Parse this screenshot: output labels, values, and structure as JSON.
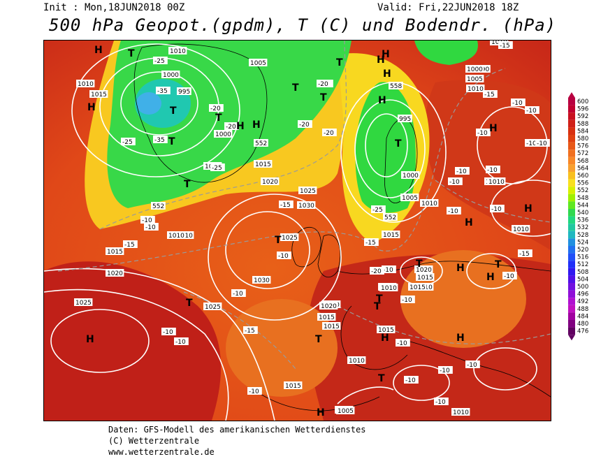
{
  "header": {
    "init": "Init : Mon,18JUN2018 00Z",
    "valid": "Valid: Fri,22JUN2018 18Z",
    "title": "500 hPa Geopot.(gpdm), T (C) und Bodendr. (hPa)"
  },
  "legend": {
    "values": [
      "600",
      "596",
      "592",
      "588",
      "584",
      "580",
      "576",
      "572",
      "568",
      "564",
      "560",
      "556",
      "552",
      "548",
      "544",
      "540",
      "536",
      "532",
      "528",
      "524",
      "520",
      "516",
      "512",
      "508",
      "504",
      "500",
      "496",
      "492",
      "488",
      "484",
      "480",
      "476"
    ],
    "colors": [
      "#b80040",
      "#c00030",
      "#c81020",
      "#d02018",
      "#d83010",
      "#e04010",
      "#e85818",
      "#f07020",
      "#f88828",
      "#f8a030",
      "#f8c020",
      "#f8e020",
      "#d8f000",
      "#a0f000",
      "#60e820",
      "#30d850",
      "#20d880",
      "#20c8a0",
      "#20b8c0",
      "#2090e0",
      "#2070f0",
      "#2050f8",
      "#2030f8",
      "#3018f0",
      "#5010e8",
      "#7010e0",
      "#9010d8",
      "#b010d0",
      "#c010c0",
      "#a000a0",
      "#800080",
      "#600060"
    ]
  },
  "pressure_labels": [
    "1010",
    "1010",
    "1005",
    "1000",
    "1015",
    "995",
    "1000",
    "1005",
    "1010",
    "1015",
    "1020",
    "1025",
    "1030",
    "1025",
    "1030",
    "1015",
    "1010",
    "1015",
    "1020",
    "1025",
    "1020",
    "1015",
    "1010",
    "1025",
    "1015",
    "1010",
    "1005",
    "1010",
    "1010",
    "990",
    "1000",
    "1005",
    "1010",
    "995",
    "1000",
    "1005",
    "1010",
    "1015",
    "1020",
    "1015",
    "1010",
    "1015",
    "1010",
    "1010",
    "1010",
    "1010",
    "1015",
    "1010",
    "1005",
    "552",
    "552",
    "558",
    "552"
  ],
  "temp_labels": [
    "-25",
    "-35",
    "-35",
    "-25",
    "-20",
    "-20",
    "-25",
    "-20",
    "-20",
    "-20",
    "-15",
    "-10",
    "-10",
    "-10",
    "-10",
    "-10",
    "-10",
    "-15",
    "-10",
    "-10",
    "-10",
    "-10",
    "-15",
    "-20",
    "-25",
    "-15",
    "-20",
    "-15",
    "-15",
    "-10",
    "-10",
    "-10",
    "-10",
    "-10",
    "-10",
    "-10",
    "-10",
    "-10",
    "-10",
    "-10",
    "-15",
    "-10",
    "-10",
    "-10",
    "-10"
  ],
  "pressure_centers": [
    "H",
    "T",
    "H",
    "T",
    "T",
    "H",
    "T",
    "T",
    "H",
    "H",
    "H",
    "H",
    "H",
    "H",
    "T",
    "T",
    "T",
    "H",
    "H",
    "H",
    "H",
    "T",
    "T",
    "T",
    "T",
    "H",
    "H",
    "T",
    "H",
    "T",
    "H",
    "T",
    "T",
    "T"
  ],
  "footer": {
    "line1": "Daten: GFS-Modell des amerikanischen Wetterdienstes",
    "line2": "(C) Wetterzentrale",
    "line3": "www.wetterzentrale.de"
  }
}
